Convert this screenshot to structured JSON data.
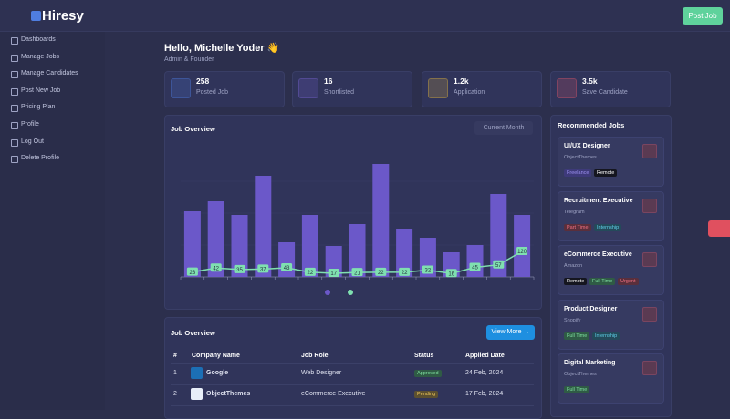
{
  "brand": "Hiresy",
  "header": {
    "button": "Post Job"
  },
  "sidebar": [
    "Dashboards",
    "Manage Jobs",
    "Manage Candidates",
    "Post New Job",
    "Pricing Plan",
    "Profile",
    "Log Out",
    "Delete Profile"
  ],
  "greeting": {
    "title": "Hello, Michelle Yoder 👋",
    "subtitle": "Admin & Founder"
  },
  "stats": [
    {
      "value": "258",
      "label": "Posted Job",
      "color": "#4f7de0"
    },
    {
      "value": "16",
      "label": "Shortlisted",
      "color": "#7a66d6"
    },
    {
      "value": "1.2k",
      "label": "Application",
      "color": "#e8b93a"
    },
    {
      "value": "3.5k",
      "label": "Save Candidate",
      "color": "#e0586a"
    }
  ],
  "chart_card": {
    "title": "Job Overview",
    "filter": "Current Month"
  },
  "chart_data": {
    "type": "bar",
    "categories": [
      null,
      null,
      null,
      null,
      null,
      null,
      null,
      null,
      null,
      null,
      null,
      null,
      null,
      null,
      null
    ],
    "ylim": [
      0,
      140
    ],
    "y2lim": [
      0,
      600
    ],
    "series": [
      {
        "color": "#6b58c9",
        "values": [
          72,
          83,
          68,
          111,
          38,
          68,
          34,
          58,
          124,
          53,
          43,
          27,
          35,
          91,
          68
        ]
      },
      {
        "color": "#7fe0b0",
        "axis": "y2",
        "type": "line",
        "values": [
          23,
          42,
          35,
          37,
          43,
          22,
          17,
          21,
          22,
          22,
          32,
          16,
          45,
          57,
          120
        ]
      }
    ]
  },
  "table": {
    "title": "Job Overview",
    "button": "View More →",
    "columns": [
      "#",
      "Company Name",
      "Job Role",
      "Status",
      "Applied Date"
    ],
    "rows": [
      [
        "1",
        "Google",
        "Web Designer",
        "Approved",
        "24 Feb, 2024"
      ],
      [
        "2",
        "ObjectThemes",
        "eCommerce Executive",
        "Pending",
        "17 Feb, 2024"
      ]
    ]
  },
  "recommended": {
    "title": "Recommended Jobs",
    "jobs": [
      {
        "title": "UI/UX Designer",
        "company": "ObjectThemes",
        "tags": [
          "Freelance",
          "Remote"
        ]
      },
      {
        "title": "Recruitment Executive",
        "company": "Telegram",
        "tags": [
          "Part Time",
          "Internship"
        ]
      },
      {
        "title": "eCommerce Executive",
        "company": "Amazon",
        "tags": [
          "Remote",
          "Full Time",
          "Urgent"
        ]
      },
      {
        "title": "Product Designer",
        "company": "Shopify",
        "tags": [
          "Full Time",
          "Internship"
        ]
      },
      {
        "title": "Digital Marketing",
        "company": "ObjectThemes",
        "tags": [
          "Full Time"
        ]
      }
    ]
  }
}
